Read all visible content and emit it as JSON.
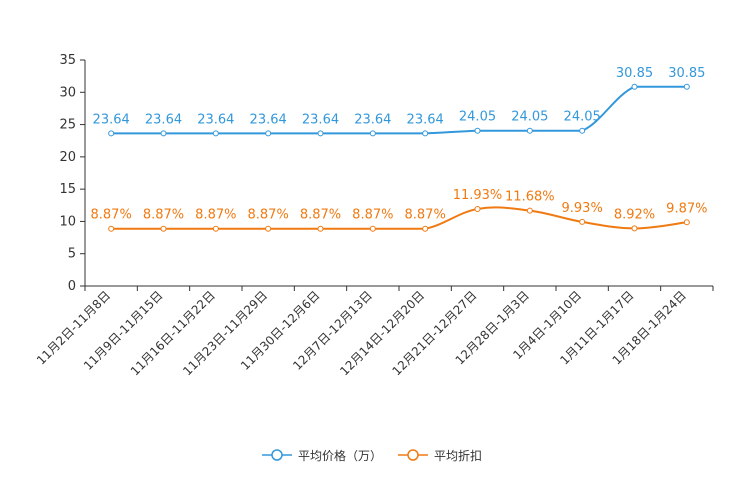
{
  "chart_data": {
    "type": "line",
    "categories": [
      "11月2日-11月8日",
      "11月9日-11月15日",
      "11月16日-11月22日",
      "11月23日-11月29日",
      "11月30日-12月6日",
      "12月7日-12月13日",
      "12月14日-12月20日",
      "12月21日-12月27日",
      "12月28日-1月3日",
      "1月4日-1月10日",
      "1月11日-1月17日",
      "1月18日-1月24日"
    ],
    "series": [
      {
        "name": "平均价格（万）",
        "color": "#3398DB",
        "values": [
          23.64,
          23.64,
          23.64,
          23.64,
          23.64,
          23.64,
          23.64,
          24.05,
          24.05,
          24.05,
          30.85,
          30.85
        ],
        "labels": [
          "23.64",
          "23.64",
          "23.64",
          "23.64",
          "23.64",
          "23.64",
          "23.64",
          "24.05",
          "24.05",
          "24.05",
          "30.85",
          "30.85"
        ]
      },
      {
        "name": "平均折扣",
        "color": "#F07A12",
        "values": [
          8.87,
          8.87,
          8.87,
          8.87,
          8.87,
          8.87,
          8.87,
          11.93,
          11.68,
          9.93,
          8.92,
          9.87
        ],
        "labels": [
          "8.87%",
          "8.87%",
          "8.87%",
          "8.87%",
          "8.87%",
          "8.87%",
          "8.87%",
          "11.93%",
          "11.68%",
          "9.93%",
          "8.92%",
          "9.87%"
        ]
      }
    ],
    "yticks": [
      0,
      5,
      10,
      15,
      20,
      25,
      30,
      35
    ],
    "ylim": [
      0,
      35
    ],
    "grid": false,
    "legend": "bottom-center"
  }
}
